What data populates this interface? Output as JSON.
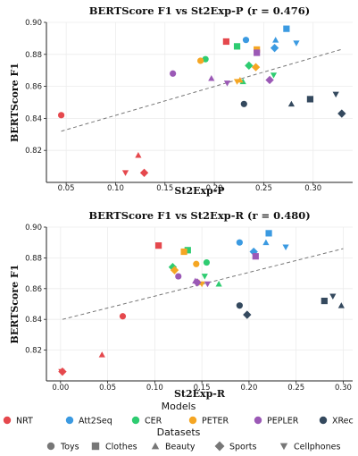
{
  "colors": {
    "NRT": "#e5484d",
    "Att2Seq": "#3b9ae1",
    "CER": "#2ecc71",
    "PETER": "#f5a623",
    "PEPLER": "#9b59b6",
    "XRec": "#34495e"
  },
  "legend": {
    "models_title": "Models",
    "models": [
      "NRT",
      "Att2Seq",
      "CER",
      "PETER",
      "PEPLER",
      "XRec"
    ],
    "datasets_title": "Datasets",
    "datasets": [
      {
        "name": "Toys",
        "marker": "circle"
      },
      {
        "name": "Clothes",
        "marker": "square"
      },
      {
        "name": "Beauty",
        "marker": "triangle-up"
      },
      {
        "name": "Sports",
        "marker": "diamond"
      },
      {
        "name": "Cellphones",
        "marker": "triangle-down"
      }
    ]
  },
  "chart_data": [
    {
      "type": "scatter",
      "title": "BERTScore F1 vs St2Exp-P (r = 0.476)",
      "xlabel": "St2Exp-P",
      "ylabel": "BERTScore F1",
      "xlim": [
        0.03,
        0.34
      ],
      "ylim": [
        0.8,
        0.9
      ],
      "xticks": [
        "0.05",
        "0.10",
        "0.15",
        "0.20",
        "0.25",
        "0.30"
      ],
      "yticks": [
        "0.82",
        "0.84",
        "0.86",
        "0.88",
        "0.90"
      ],
      "grid": true,
      "trendline": {
        "x": [
          0.045,
          0.328
        ],
        "y": [
          0.832,
          0.883
        ]
      },
      "points": [
        {
          "model": "NRT",
          "dataset": "Toys",
          "x": 0.045,
          "y": 0.842
        },
        {
          "model": "NRT",
          "dataset": "Clothes",
          "x": 0.212,
          "y": 0.888
        },
        {
          "model": "NRT",
          "dataset": "Beauty",
          "x": 0.123,
          "y": 0.817
        },
        {
          "model": "NRT",
          "dataset": "Sports",
          "x": 0.129,
          "y": 0.806
        },
        {
          "model": "NRT",
          "dataset": "Cellphones",
          "x": 0.11,
          "y": 0.806
        },
        {
          "model": "Att2Seq",
          "dataset": "Toys",
          "x": 0.232,
          "y": 0.889
        },
        {
          "model": "Att2Seq",
          "dataset": "Clothes",
          "x": 0.273,
          "y": 0.896
        },
        {
          "model": "Att2Seq",
          "dataset": "Beauty",
          "x": 0.262,
          "y": 0.889
        },
        {
          "model": "Att2Seq",
          "dataset": "Sports",
          "x": 0.261,
          "y": 0.884
        },
        {
          "model": "Att2Seq",
          "dataset": "Cellphones",
          "x": 0.283,
          "y": 0.887
        },
        {
          "model": "CER",
          "dataset": "Toys",
          "x": 0.191,
          "y": 0.877
        },
        {
          "model": "CER",
          "dataset": "Clothes",
          "x": 0.223,
          "y": 0.885
        },
        {
          "model": "CER",
          "dataset": "Beauty",
          "x": 0.229,
          "y": 0.863
        },
        {
          "model": "CER",
          "dataset": "Sports",
          "x": 0.235,
          "y": 0.873
        },
        {
          "model": "CER",
          "dataset": "Cellphones",
          "x": 0.26,
          "y": 0.867
        },
        {
          "model": "PETER",
          "dataset": "Toys",
          "x": 0.186,
          "y": 0.876
        },
        {
          "model": "PETER",
          "dataset": "Clothes",
          "x": 0.243,
          "y": 0.883
        },
        {
          "model": "PETER",
          "dataset": "Beauty",
          "x": 0.226,
          "y": 0.864
        },
        {
          "model": "PETER",
          "dataset": "Sports",
          "x": 0.242,
          "y": 0.872
        },
        {
          "model": "PETER",
          "dataset": "Cellphones",
          "x": 0.223,
          "y": 0.863
        },
        {
          "model": "PEPLER",
          "dataset": "Toys",
          "x": 0.158,
          "y": 0.868
        },
        {
          "model": "PEPLER",
          "dataset": "Clothes",
          "x": 0.243,
          "y": 0.881
        },
        {
          "model": "PEPLER",
          "dataset": "Beauty",
          "x": 0.197,
          "y": 0.865
        },
        {
          "model": "PEPLER",
          "dataset": "Sports",
          "x": 0.256,
          "y": 0.864
        },
        {
          "model": "PEPLER",
          "dataset": "Cellphones",
          "x": 0.213,
          "y": 0.862
        },
        {
          "model": "XRec",
          "dataset": "Toys",
          "x": 0.23,
          "y": 0.849
        },
        {
          "model": "XRec",
          "dataset": "Clothes",
          "x": 0.297,
          "y": 0.852
        },
        {
          "model": "XRec",
          "dataset": "Beauty",
          "x": 0.278,
          "y": 0.849
        },
        {
          "model": "XRec",
          "dataset": "Sports",
          "x": 0.329,
          "y": 0.843
        },
        {
          "model": "XRec",
          "dataset": "Cellphones",
          "x": 0.323,
          "y": 0.855
        }
      ]
    },
    {
      "type": "scatter",
      "title": "BERTScore F1 vs St2Exp-R (r = 0.480)",
      "xlabel": "St2Exp-R",
      "ylabel": "BERTScore F1",
      "xlim": [
        -0.015,
        0.31
      ],
      "ylim": [
        0.8,
        0.9
      ],
      "xticks": [
        "0.00",
        "0.05",
        "0.10",
        "0.15",
        "0.20",
        "0.25",
        "0.30"
      ],
      "yticks": [
        "0.82",
        "0.84",
        "0.86",
        "0.88",
        "0.90"
      ],
      "grid": true,
      "trendline": {
        "x": [
          0.002,
          0.3
        ],
        "y": [
          0.84,
          0.886
        ]
      },
      "points": [
        {
          "model": "NRT",
          "dataset": "Toys",
          "x": 0.066,
          "y": 0.842
        },
        {
          "model": "NRT",
          "dataset": "Clothes",
          "x": 0.104,
          "y": 0.888
        },
        {
          "model": "NRT",
          "dataset": "Beauty",
          "x": 0.044,
          "y": 0.817
        },
        {
          "model": "NRT",
          "dataset": "Sports",
          "x": 0.002,
          "y": 0.806
        },
        {
          "model": "NRT",
          "dataset": "Cellphones",
          "x": 0.001,
          "y": 0.806
        },
        {
          "model": "Att2Seq",
          "dataset": "Toys",
          "x": 0.19,
          "y": 0.89
        },
        {
          "model": "Att2Seq",
          "dataset": "Clothes",
          "x": 0.221,
          "y": 0.896
        },
        {
          "model": "Att2Seq",
          "dataset": "Beauty",
          "x": 0.218,
          "y": 0.89
        },
        {
          "model": "Att2Seq",
          "dataset": "Sports",
          "x": 0.205,
          "y": 0.884
        },
        {
          "model": "Att2Seq",
          "dataset": "Cellphones",
          "x": 0.239,
          "y": 0.887
        },
        {
          "model": "CER",
          "dataset": "Toys",
          "x": 0.155,
          "y": 0.877
        },
        {
          "model": "CER",
          "dataset": "Clothes",
          "x": 0.135,
          "y": 0.885
        },
        {
          "model": "CER",
          "dataset": "Beauty",
          "x": 0.168,
          "y": 0.863
        },
        {
          "model": "CER",
          "dataset": "Sports",
          "x": 0.119,
          "y": 0.874
        },
        {
          "model": "CER",
          "dataset": "Cellphones",
          "x": 0.153,
          "y": 0.868
        },
        {
          "model": "PETER",
          "dataset": "Toys",
          "x": 0.144,
          "y": 0.876
        },
        {
          "model": "PETER",
          "dataset": "Clothes",
          "x": 0.131,
          "y": 0.884
        },
        {
          "model": "PETER",
          "dataset": "Beauty",
          "x": 0.147,
          "y": 0.864
        },
        {
          "model": "PETER",
          "dataset": "Sports",
          "x": 0.121,
          "y": 0.872
        },
        {
          "model": "PETER",
          "dataset": "Cellphones",
          "x": 0.15,
          "y": 0.863
        },
        {
          "model": "PEPLER",
          "dataset": "Toys",
          "x": 0.125,
          "y": 0.868
        },
        {
          "model": "PEPLER",
          "dataset": "Clothes",
          "x": 0.207,
          "y": 0.881
        },
        {
          "model": "PEPLER",
          "dataset": "Beauty",
          "x": 0.143,
          "y": 0.865
        },
        {
          "model": "PEPLER",
          "dataset": "Sports",
          "x": 0.145,
          "y": 0.864
        },
        {
          "model": "PEPLER",
          "dataset": "Cellphones",
          "x": 0.156,
          "y": 0.863
        },
        {
          "model": "XRec",
          "dataset": "Toys",
          "x": 0.19,
          "y": 0.849
        },
        {
          "model": "XRec",
          "dataset": "Clothes",
          "x": 0.28,
          "y": 0.852
        },
        {
          "model": "XRec",
          "dataset": "Beauty",
          "x": 0.298,
          "y": 0.849
        },
        {
          "model": "XRec",
          "dataset": "Sports",
          "x": 0.198,
          "y": 0.843
        },
        {
          "model": "XRec",
          "dataset": "Cellphones",
          "x": 0.289,
          "y": 0.855
        }
      ]
    }
  ]
}
